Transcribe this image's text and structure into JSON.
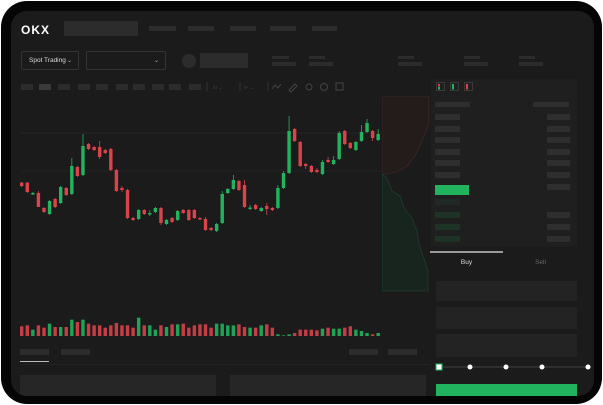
{
  "header": {
    "logo": "OKX"
  },
  "toolbar": {
    "market_select": "Spot Trading",
    "chevron": "⌄"
  },
  "trade": {
    "buy_tab": "Buy",
    "sell_tab": "Sell",
    "slider_value_percent": 0
  },
  "colors": {
    "up": "#22b35e",
    "down": "#d9434a",
    "accent": "#22b35e",
    "background": "#1b1b1b"
  },
  "candles": [
    [
      68.3,
      65,
      69,
      64
    ],
    [
      68.3,
      59,
      69,
      58
    ],
    [
      57,
      58,
      59,
      56
    ],
    [
      58,
      44,
      60,
      44
    ],
    [
      43,
      39,
      44,
      38
    ],
    [
      37,
      50,
      51,
      36
    ],
    [
      52,
      44,
      53,
      43
    ],
    [
      48,
      64,
      65,
      47
    ],
    [
      63,
      56,
      64,
      55
    ],
    [
      57,
      85,
      93,
      56
    ],
    [
      84,
      75,
      85,
      74
    ],
    [
      76,
      105,
      117,
      75
    ],
    [
      107,
      102,
      108,
      101
    ],
    [
      104,
      101,
      105,
      100
    ],
    [
      104,
      94,
      110,
      92
    ],
    [
      101,
      98,
      102,
      97
    ],
    [
      102,
      81,
      103,
      80
    ],
    [
      81,
      60,
      82,
      59
    ],
    [
      63,
      61,
      65,
      59
    ],
    [
      61,
      33,
      62,
      32
    ],
    [
      33,
      31,
      34,
      30
    ],
    [
      32,
      41,
      42,
      31
    ],
    [
      41,
      37,
      42,
      36
    ],
    [
      37,
      38,
      41,
      35
    ],
    [
      39,
      43,
      44,
      38
    ],
    [
      43,
      28,
      44,
      26
    ],
    [
      27,
      31,
      32,
      26
    ],
    [
      33,
      29,
      34,
      28
    ],
    [
      31,
      40,
      41,
      30
    ],
    [
      41,
      38,
      42,
      37
    ],
    [
      41,
      31,
      42,
      30
    ],
    [
      41,
      33,
      42,
      32
    ],
    [
      33,
      32,
      34,
      31
    ],
    [
      32,
      21,
      34,
      20
    ],
    [
      23,
      21,
      24,
      20
    ],
    [
      20,
      27,
      28,
      19
    ],
    [
      28,
      57,
      60,
      27
    ],
    [
      58,
      62,
      63,
      57
    ],
    [
      62,
      71,
      76,
      61
    ],
    [
      70,
      61,
      71,
      60
    ],
    [
      66,
      44,
      71,
      43
    ],
    [
      43,
      43.5,
      46,
      41
    ],
    [
      46,
      42,
      47,
      41
    ],
    [
      40,
      43,
      44,
      39
    ],
    [
      45,
      42,
      48,
      36
    ],
    [
      43,
      41,
      44,
      40
    ],
    [
      43,
      63,
      66,
      42
    ],
    [
      63,
      78,
      80,
      62
    ],
    [
      78,
      120,
      135,
      77
    ],
    [
      122,
      110,
      123,
      109
    ],
    [
      109,
      85,
      110,
      84
    ],
    [
      87,
      85,
      88,
      82
    ],
    [
      85,
      79,
      86,
      78
    ],
    [
      81,
      79,
      83,
      78
    ],
    [
      77,
      89,
      91,
      76
    ],
    [
      91,
      89,
      94,
      88
    ],
    [
      87,
      91,
      95,
      86
    ],
    [
      92,
      118,
      120,
      91
    ],
    [
      120,
      107,
      121,
      106
    ],
    [
      108,
      103,
      109,
      102
    ],
    [
      101,
      109,
      110,
      100
    ],
    [
      110,
      119,
      126,
      109
    ],
    [
      119,
      128,
      132,
      118
    ],
    [
      120,
      113,
      121,
      110
    ],
    [
      111,
      117,
      122,
      110
    ]
  ],
  "volumes": [
    32,
    35,
    22,
    35,
    28,
    40,
    30,
    30,
    30,
    52,
    45,
    52,
    40,
    35,
    35,
    28,
    35,
    42,
    35,
    35,
    28,
    58,
    35,
    35,
    22,
    35,
    30,
    38,
    38,
    40,
    28,
    35,
    38,
    38,
    28,
    40,
    40,
    35,
    35,
    38,
    30,
    28,
    28,
    35,
    38,
    28,
    8,
    5,
    8,
    12,
    22,
    22,
    22,
    20,
    25,
    28,
    25,
    25,
    28,
    32,
    22,
    18,
    12,
    8,
    12
  ]
}
